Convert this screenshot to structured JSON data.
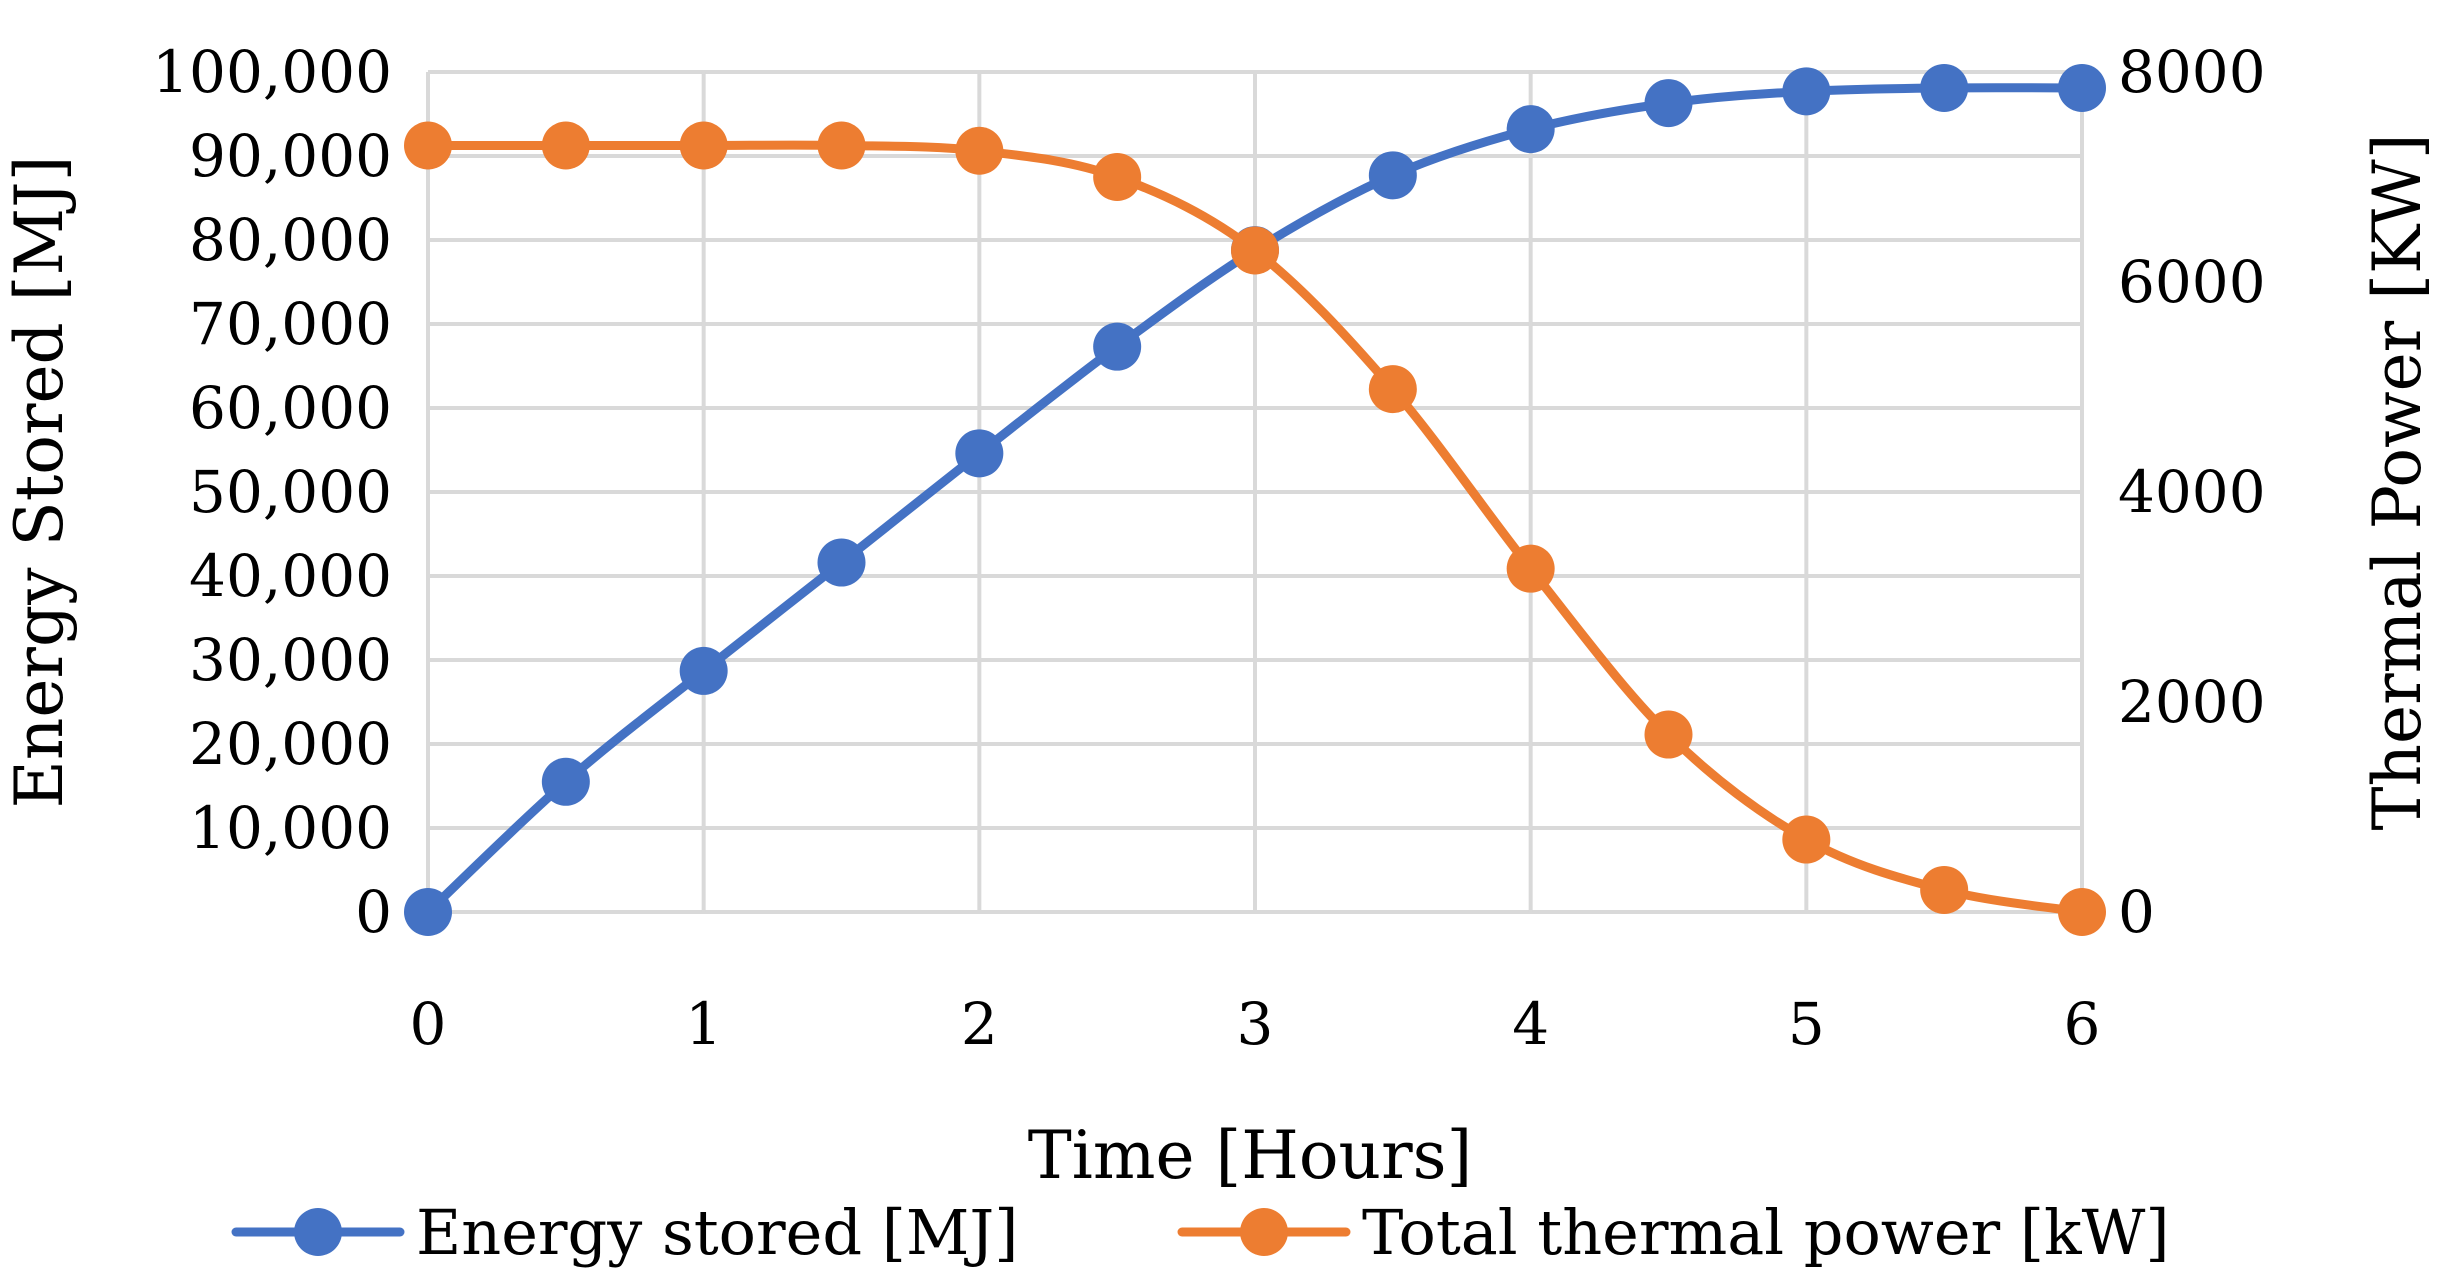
{
  "chart_data": {
    "type": "line",
    "title": "",
    "xlabel": "Time [Hours]",
    "ylabel_left": "Energy Stored [MJ]",
    "ylabel_right": "Thermal Power [KW]",
    "xlim": [
      0,
      6
    ],
    "ylim_left": [
      0,
      100000
    ],
    "ylim_right": [
      0,
      8000
    ],
    "x_ticks": [
      0,
      1,
      2,
      3,
      4,
      5,
      6
    ],
    "y_left_ticks": [
      0,
      10000,
      20000,
      30000,
      40000,
      50000,
      60000,
      70000,
      80000,
      90000,
      100000
    ],
    "y_left_tick_labels": [
      "0",
      "10,000",
      "20,000",
      "30,000",
      "40,000",
      "50,000",
      "60,000",
      "70,000",
      "80,000",
      "90,000",
      "100,000"
    ],
    "y_right_ticks": [
      0,
      2000,
      4000,
      6000,
      8000
    ],
    "y_right_tick_labels": [
      "0",
      "2000",
      "4000",
      "6000",
      "8000"
    ],
    "grid": true,
    "legend_position": "bottom",
    "x": [
      0,
      0.5,
      1,
      1.5,
      2,
      2.5,
      3,
      3.5,
      4,
      4.5,
      5,
      5.5,
      6
    ],
    "series": [
      {
        "name": "Energy stored [MJ]",
        "axis": "left",
        "color": "#4472c4",
        "values": [
          0,
          15500,
          28700,
          41600,
          54600,
          67300,
          78800,
          87700,
          93200,
          96300,
          97700,
          98100,
          98100
        ]
      },
      {
        "name": "Total thermal power [kW]",
        "axis": "right",
        "color": "#ed7d31",
        "values": [
          7300,
          7300,
          7300,
          7300,
          7250,
          7000,
          6300,
          4980,
          3270,
          1690,
          690,
          210,
          0
        ]
      }
    ]
  }
}
